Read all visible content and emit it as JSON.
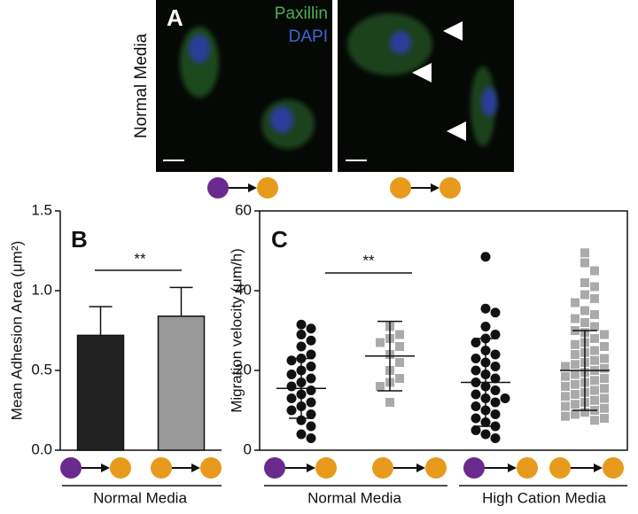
{
  "panel_a": {
    "label": "A",
    "stain_1": "Paxillin",
    "stain_2": "DAPI",
    "row_label": "Normal Media"
  },
  "chart_data": [
    {
      "type": "bar",
      "panel": "B",
      "y_label": "Mean Adhesion Area (μm²)",
      "categories": [
        null,
        null
      ],
      "values": [
        0.72,
        0.84
      ],
      "errors": [
        0.18,
        0.18
      ],
      "colors": [
        "#222222",
        "#999999"
      ],
      "ylim": [
        0,
        1.5
      ],
      "yticks": [
        {
          "value": 0,
          "label": "0.0"
        },
        {
          "value": 0.5,
          "label": "0.5"
        },
        {
          "value": 1,
          "label": "1.0"
        },
        {
          "value": 1.5,
          "label": "1.5"
        }
      ],
      "annotation": "**",
      "group_label": "Normal Media"
    },
    {
      "type": "strip",
      "panel": "C",
      "y_label": "Migration velocity (μm/h)",
      "categories": [
        null,
        null,
        null,
        null
      ],
      "groups": [
        {
          "color": "#111111",
          "marker": "circle",
          "mean": 15.5,
          "sd": 7.5,
          "values": [
            31.5,
            30.5,
            29,
            27.5,
            26,
            24,
            23,
            22.5,
            21,
            20,
            19,
            18,
            17,
            16,
            15,
            14,
            13,
            12,
            11,
            10,
            9,
            7.5,
            6,
            4,
            3
          ]
        },
        {
          "color": "#aaaaaa",
          "marker": "square",
          "mean": 23.6,
          "sd": 8.7,
          "values": [
            31,
            29,
            28,
            27,
            26,
            24,
            22,
            20,
            18,
            17,
            16,
            12
          ]
        },
        {
          "color": "#111111",
          "marker": "circle",
          "mean": 17,
          "sd": 11,
          "values": [
            48.5,
            35.5,
            34.5,
            31,
            29,
            28,
            27,
            25,
            24,
            23,
            22,
            21,
            20,
            19,
            18,
            17,
            16,
            15,
            14,
            13,
            13,
            12,
            11,
            10,
            9,
            8,
            7,
            6,
            5,
            4,
            3
          ]
        },
        {
          "color": "#aaaaaa",
          "marker": "square",
          "mean": 20,
          "sd": 10,
          "values": [
            49.5,
            47,
            45,
            42,
            41,
            39,
            38,
            37,
            35,
            34,
            33,
            32,
            31,
            30,
            29.5,
            29,
            28,
            27,
            26.5,
            26,
            25,
            24.5,
            24,
            23,
            22.5,
            22,
            21.5,
            21,
            20.5,
            20,
            19.5,
            19,
            18.5,
            18,
            17.5,
            17,
            16.5,
            16,
            15.5,
            15,
            14.5,
            14,
            13.5,
            13,
            12.5,
            12,
            11.5,
            11,
            10.5,
            10,
            9.5,
            9,
            8.5,
            8,
            7.5
          ]
        }
      ],
      "ylim": [
        0,
        60
      ],
      "yticks": [
        0,
        20,
        40,
        60
      ],
      "annotation": "**",
      "group_labels": [
        "Normal Media",
        "High Cation Media"
      ]
    }
  ]
}
